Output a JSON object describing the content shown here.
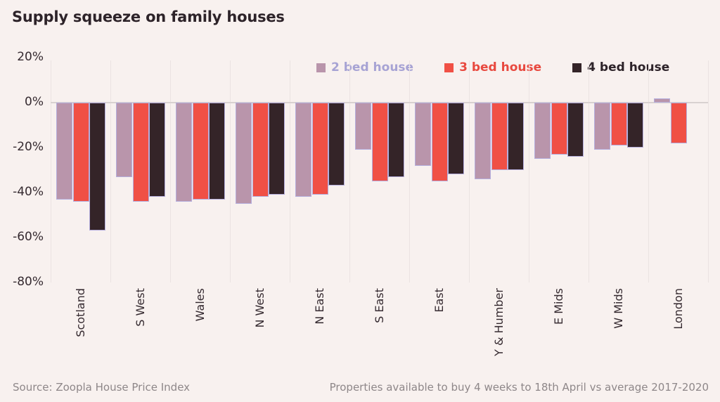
{
  "title": "Supply squeeze on family houses",
  "footer": {
    "source": "Source: Zoopla House Price Index",
    "note": "Properties available to buy 4 weeks to 18th April vs average 2017-2020"
  },
  "colors": {
    "background": "#f8f1ef",
    "title_text": "#2d2329",
    "axis_text": "#352a30",
    "footer_text": "#8e8789",
    "gridline": "#ebe3e2",
    "zero_line": "#d9d2d1",
    "bar_outline": "#b5aedd"
  },
  "chart_data": {
    "type": "bar",
    "title": "Supply squeeze on family houses",
    "categories": [
      "Scotland",
      "S West",
      "Wales",
      "N West",
      "N East",
      "S East",
      "East",
      "Y & Humber",
      "E Mids",
      "W Mids",
      "London"
    ],
    "series": [
      {
        "name": "2 bed house",
        "color": "#b995ab",
        "legend_text_color": "#a7a3d4",
        "values": [
          -43,
          -33,
          -44,
          -45,
          -42,
          -21,
          -28,
          -34,
          -25,
          -21,
          2
        ]
      },
      {
        "name": "3 bed house",
        "color": "#f05045",
        "legend_text_color": "#e8493f",
        "values": [
          -44,
          -44,
          -43,
          -42,
          -41,
          -35,
          -35,
          -30,
          -23,
          -19,
          -18
        ]
      },
      {
        "name": "4 bed house",
        "color": "#342428",
        "legend_text_color": "#2d2329",
        "values": [
          -57,
          -42,
          -43,
          -41,
          -37,
          -33,
          -32,
          -30,
          -24,
          -20,
          null
        ]
      }
    ],
    "unit": "%",
    "ylim": [
      -80,
      20
    ],
    "yticks": [
      "20%",
      "0%",
      "-20%",
      "-40%",
      "-60%",
      "-80%"
    ],
    "ytick_values": [
      20,
      0,
      -20,
      -40,
      -60,
      -80
    ],
    "grid": "vertical category separators, single horizontal zero line",
    "legend_position": "top-right",
    "x_label_rotation": -90
  }
}
